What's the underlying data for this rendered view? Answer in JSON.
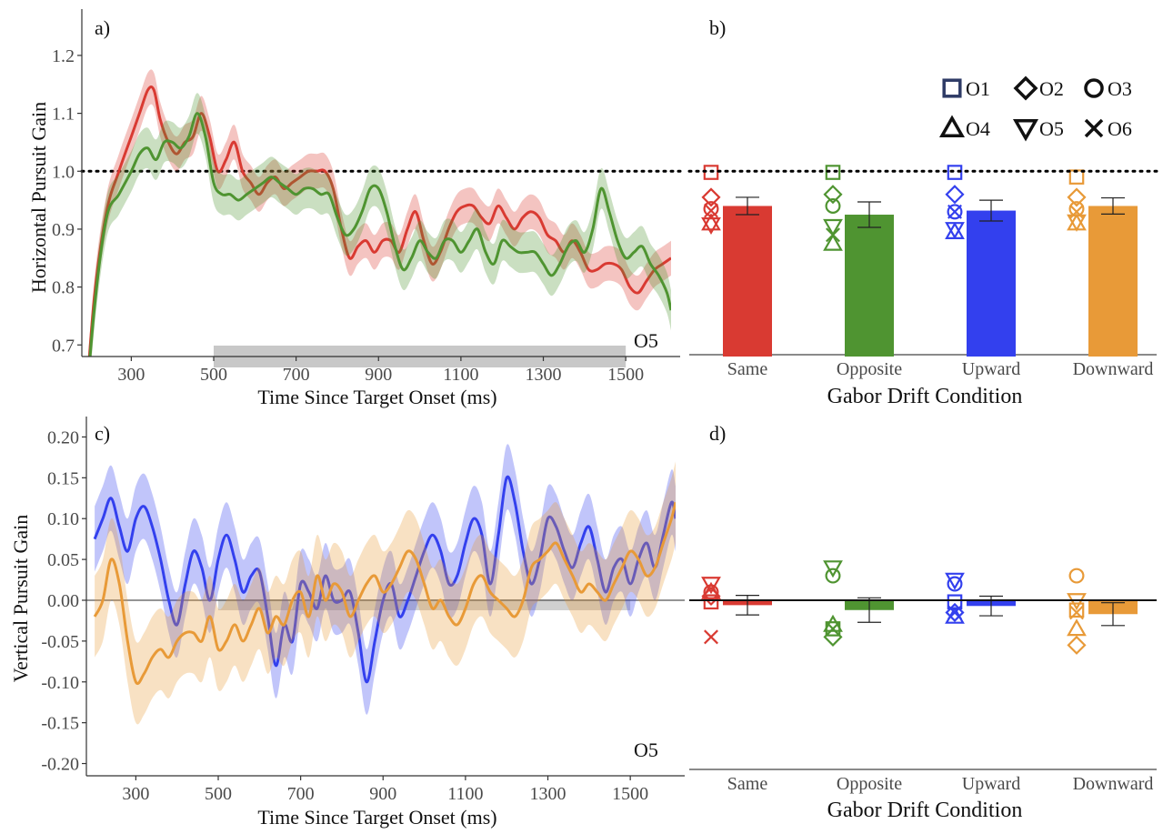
{
  "panels": {
    "a": {
      "label": "a)",
      "annotation": "O5",
      "xlabel": "Time Since Target Onset (ms)",
      "ylabel": "Horizontal Pursuit Gain",
      "xticks": [
        300,
        500,
        700,
        900,
        1100,
        1300,
        1500
      ],
      "yticks": [
        "0.7",
        "0.8",
        "0.9",
        "1.0",
        "1.1",
        "1.2"
      ]
    },
    "b": {
      "label": "b)",
      "xlabel": "Gabor Drift Condition",
      "categories": [
        "Same",
        "Opposite",
        "Upward",
        "Downward"
      ]
    },
    "c": {
      "label": "c)",
      "annotation": "O5",
      "xlabel": "Time Since Target Onset (ms)",
      "ylabel": "Vertical Pursuit Gain",
      "xticks": [
        300,
        500,
        700,
        900,
        1100,
        1300,
        1500
      ],
      "yticks": [
        "-0.20",
        "-0.15",
        "-0.10",
        "-0.05",
        "0.00",
        "0.05",
        "0.10",
        "0.15",
        "0.20"
      ]
    },
    "d": {
      "label": "d)",
      "xlabel": "Gabor Drift Condition",
      "categories": [
        "Same",
        "Opposite",
        "Upward",
        "Downward"
      ]
    }
  },
  "legend": {
    "items": [
      {
        "symbol": "square",
        "label": "O1"
      },
      {
        "symbol": "diamond",
        "label": "O2"
      },
      {
        "symbol": "circle",
        "label": "O3"
      },
      {
        "symbol": "triangle-up",
        "label": "O4"
      },
      {
        "symbol": "triangle-down",
        "label": "O5"
      },
      {
        "symbol": "cross",
        "label": "O6"
      }
    ]
  },
  "colors": {
    "same": "#d93a32",
    "opposite": "#4f9431",
    "upward": "#3340ee",
    "downward": "#e89a38",
    "highlight": "#c8c8c8"
  },
  "chart_data": [
    {
      "panel": "a",
      "type": "line",
      "xlim": [
        180,
        1610
      ],
      "ylim": [
        0.68,
        1.28
      ],
      "reference_line": 1.0,
      "highlight_window": [
        500,
        1500
      ],
      "series": [
        {
          "color": "#d93a32",
          "x": [
            180,
            210,
            240,
            270,
            300,
            320,
            340,
            355,
            370,
            390,
            410,
            430,
            450,
            470,
            490,
            510,
            530,
            550,
            570,
            590,
            610,
            630,
            650,
            670,
            690,
            710,
            730,
            750,
            770,
            790,
            810,
            830,
            850,
            870,
            890,
            910,
            930,
            950,
            970,
            990,
            1010,
            1030,
            1050,
            1070,
            1090,
            1110,
            1130,
            1150,
            1170,
            1190,
            1210,
            1230,
            1250,
            1270,
            1290,
            1310,
            1330,
            1350,
            1370,
            1390,
            1410,
            1430,
            1450,
            1470,
            1490,
            1510,
            1530,
            1550,
            1570,
            1590,
            1610
          ],
          "y": [
            0.5,
            0.78,
            0.93,
            1.0,
            1.06,
            1.1,
            1.14,
            1.14,
            1.09,
            1.05,
            1.03,
            1.05,
            1.06,
            1.1,
            1.06,
            1.0,
            1.02,
            1.05,
            1.0,
            0.98,
            0.96,
            0.98,
            0.99,
            0.97,
            0.98,
            0.99,
            1.0,
            1.0,
            1.0,
            0.97,
            0.9,
            0.85,
            0.87,
            0.88,
            0.86,
            0.88,
            0.88,
            0.86,
            0.9,
            0.93,
            0.88,
            0.84,
            0.86,
            0.9,
            0.93,
            0.94,
            0.94,
            0.92,
            0.91,
            0.94,
            0.92,
            0.9,
            0.92,
            0.93,
            0.92,
            0.89,
            0.88,
            0.86,
            0.88,
            0.86,
            0.83,
            0.83,
            0.84,
            0.84,
            0.83,
            0.8,
            0.79,
            0.81,
            0.83,
            0.84,
            0.85
          ],
          "ci": 0.03
        },
        {
          "color": "#4f9431",
          "x": [
            180,
            210,
            240,
            270,
            300,
            320,
            340,
            360,
            380,
            400,
            420,
            440,
            460,
            480,
            500,
            520,
            540,
            560,
            580,
            600,
            620,
            640,
            660,
            680,
            700,
            720,
            740,
            760,
            780,
            800,
            820,
            840,
            860,
            880,
            900,
            920,
            940,
            960,
            980,
            1000,
            1020,
            1040,
            1060,
            1080,
            1100,
            1120,
            1140,
            1160,
            1180,
            1200,
            1220,
            1240,
            1260,
            1280,
            1300,
            1320,
            1340,
            1360,
            1380,
            1400,
            1420,
            1440,
            1460,
            1480,
            1500,
            1520,
            1540,
            1560,
            1580,
            1600,
            1610
          ],
          "y": [
            0.5,
            0.76,
            0.92,
            0.96,
            1.0,
            1.03,
            1.04,
            1.02,
            1.05,
            1.05,
            1.04,
            1.06,
            1.1,
            1.06,
            0.98,
            0.96,
            0.96,
            0.95,
            0.96,
            0.97,
            0.98,
            0.99,
            0.98,
            0.97,
            0.96,
            0.97,
            0.97,
            0.96,
            0.96,
            0.92,
            0.89,
            0.9,
            0.93,
            0.97,
            0.97,
            0.93,
            0.87,
            0.83,
            0.85,
            0.88,
            0.86,
            0.85,
            0.88,
            0.88,
            0.86,
            0.88,
            0.9,
            0.86,
            0.84,
            0.88,
            0.87,
            0.86,
            0.86,
            0.86,
            0.84,
            0.82,
            0.84,
            0.87,
            0.88,
            0.86,
            0.9,
            0.97,
            0.93,
            0.88,
            0.85,
            0.86,
            0.87,
            0.84,
            0.82,
            0.79,
            0.76
          ],
          "ci": 0.035
        }
      ]
    },
    {
      "panel": "b",
      "type": "bar",
      "ylim": [
        0.68,
        1.28
      ],
      "reference_line": 1.0,
      "categories": [
        "Same",
        "Opposite",
        "Upward",
        "Downward"
      ],
      "values": [
        0.94,
        0.925,
        0.932,
        0.94
      ],
      "errors": [
        0.015,
        0.022,
        0.018,
        0.014
      ],
      "colors": [
        "#d93a32",
        "#4f9431",
        "#3340ee",
        "#e89a38"
      ],
      "observers": [
        {
          "square": 0.998,
          "diamond": 0.955,
          "circle": 0.935,
          "triangle-up": 0.91,
          "triangle-down": 0.908,
          "cross": 0.932
        },
        {
          "square": 0.998,
          "diamond": 0.96,
          "circle": 0.94,
          "triangle-up": 0.875,
          "triangle-down": 0.905,
          "cross": 0.89
        },
        {
          "square": 0.998,
          "diamond": 0.96,
          "circle": 0.93,
          "triangle-up": 0.895,
          "triangle-down": 0.9,
          "cross": 0.93
        },
        {
          "square": 0.99,
          "diamond": 0.955,
          "circle": 0.935,
          "triangle-up": 0.91,
          "triangle-down": 0.913,
          "cross": 0.93
        }
      ]
    },
    {
      "panel": "c",
      "type": "line",
      "xlim": [
        180,
        1610
      ],
      "ylim": [
        -0.215,
        0.225
      ],
      "reference_line": 0.0,
      "highlight_window": [
        500,
        1500
      ],
      "series": [
        {
          "color": "#3340ee",
          "x": [
            200,
            220,
            240,
            260,
            280,
            300,
            320,
            340,
            360,
            380,
            400,
            420,
            440,
            460,
            480,
            500,
            520,
            540,
            560,
            580,
            600,
            620,
            640,
            660,
            680,
            700,
            720,
            740,
            760,
            780,
            800,
            820,
            840,
            860,
            880,
            900,
            920,
            940,
            960,
            980,
            1000,
            1020,
            1040,
            1060,
            1080,
            1100,
            1120,
            1140,
            1160,
            1180,
            1200,
            1220,
            1240,
            1260,
            1280,
            1300,
            1320,
            1340,
            1360,
            1380,
            1400,
            1420,
            1440,
            1460,
            1480,
            1500,
            1520,
            1540,
            1560,
            1580,
            1600,
            1610
          ],
          "y": [
            0.075,
            0.1,
            0.125,
            0.09,
            0.06,
            0.1,
            0.115,
            0.09,
            0.05,
            0.0,
            -0.03,
            0.02,
            0.06,
            0.04,
            0.0,
            0.05,
            0.08,
            0.05,
            0.01,
            0.03,
            0.035,
            -0.02,
            -0.08,
            -0.03,
            -0.05,
            0.02,
            0.01,
            -0.01,
            0.03,
            0.0,
            0.0,
            0.01,
            -0.04,
            -0.1,
            -0.05,
            0.0,
            0.02,
            -0.02,
            0.0,
            0.03,
            0.06,
            0.08,
            0.06,
            0.02,
            0.03,
            0.07,
            0.1,
            0.08,
            0.02,
            0.08,
            0.15,
            0.12,
            0.06,
            0.02,
            0.05,
            0.1,
            0.09,
            0.06,
            0.04,
            0.07,
            0.09,
            0.05,
            0.01,
            0.04,
            0.05,
            0.02,
            0.05,
            0.07,
            0.04,
            0.08,
            0.12,
            0.1
          ],
          "ci": 0.04
        },
        {
          "color": "#e89a38",
          "x": [
            200,
            220,
            240,
            260,
            280,
            300,
            320,
            340,
            360,
            380,
            400,
            420,
            440,
            460,
            480,
            500,
            520,
            540,
            560,
            580,
            600,
            620,
            640,
            660,
            680,
            700,
            720,
            740,
            760,
            780,
            800,
            820,
            840,
            860,
            880,
            900,
            920,
            940,
            960,
            980,
            1000,
            1020,
            1040,
            1060,
            1080,
            1100,
            1120,
            1140,
            1160,
            1180,
            1200,
            1220,
            1240,
            1260,
            1280,
            1300,
            1320,
            1340,
            1360,
            1380,
            1400,
            1420,
            1440,
            1460,
            1480,
            1500,
            1520,
            1540,
            1560,
            1580,
            1600,
            1610
          ],
          "y": [
            -0.02,
            0.0,
            0.05,
            0.02,
            -0.05,
            -0.1,
            -0.09,
            -0.07,
            -0.06,
            -0.07,
            -0.05,
            -0.04,
            -0.04,
            -0.05,
            -0.02,
            -0.06,
            -0.05,
            -0.03,
            -0.05,
            -0.03,
            -0.01,
            -0.04,
            -0.02,
            -0.03,
            0.0,
            0.01,
            -0.02,
            0.03,
            0.0,
            0.02,
            0.01,
            -0.02,
            0.0,
            0.02,
            0.03,
            0.01,
            0.02,
            0.04,
            0.06,
            0.05,
            0.02,
            -0.01,
            0.0,
            -0.02,
            -0.03,
            -0.01,
            0.02,
            0.03,
            0.01,
            0.0,
            -0.01,
            -0.02,
            0.0,
            0.04,
            0.05,
            0.06,
            0.07,
            0.05,
            0.03,
            0.01,
            0.02,
            0.01,
            0.0,
            0.02,
            0.04,
            0.06,
            0.05,
            0.03,
            0.04,
            0.07,
            0.1,
            0.12
          ],
          "ci": 0.05
        }
      ]
    },
    {
      "panel": "d",
      "type": "bar",
      "ylim": [
        -0.215,
        0.225
      ],
      "reference_line": 0.0,
      "categories": [
        "Same",
        "Opposite",
        "Upward",
        "Downward"
      ],
      "values": [
        -0.006,
        -0.012,
        -0.007,
        -0.017
      ],
      "errors": [
        0.012,
        0.015,
        0.012,
        0.014
      ],
      "colors": [
        "#d93a32",
        "#4f9431",
        "#3340ee",
        "#e89a38"
      ],
      "observers": [
        {
          "square": -0.002,
          "diamond": 0.005,
          "circle": 0.01,
          "triangle-up": 0.01,
          "triangle-down": 0.02,
          "cross": -0.045
        },
        {
          "square": -0.035,
          "diamond": -0.045,
          "circle": 0.03,
          "triangle-up": -0.03,
          "triangle-down": 0.04,
          "cross": -0.035
        },
        {
          "square": -0.002,
          "diamond": -0.015,
          "circle": 0.02,
          "triangle-up": -0.02,
          "triangle-down": 0.025,
          "cross": -0.015
        },
        {
          "square": -0.012,
          "diamond": -0.055,
          "circle": 0.03,
          "triangle-up": -0.035,
          "triangle-down": 0.0,
          "cross": -0.015
        }
      ]
    }
  ]
}
